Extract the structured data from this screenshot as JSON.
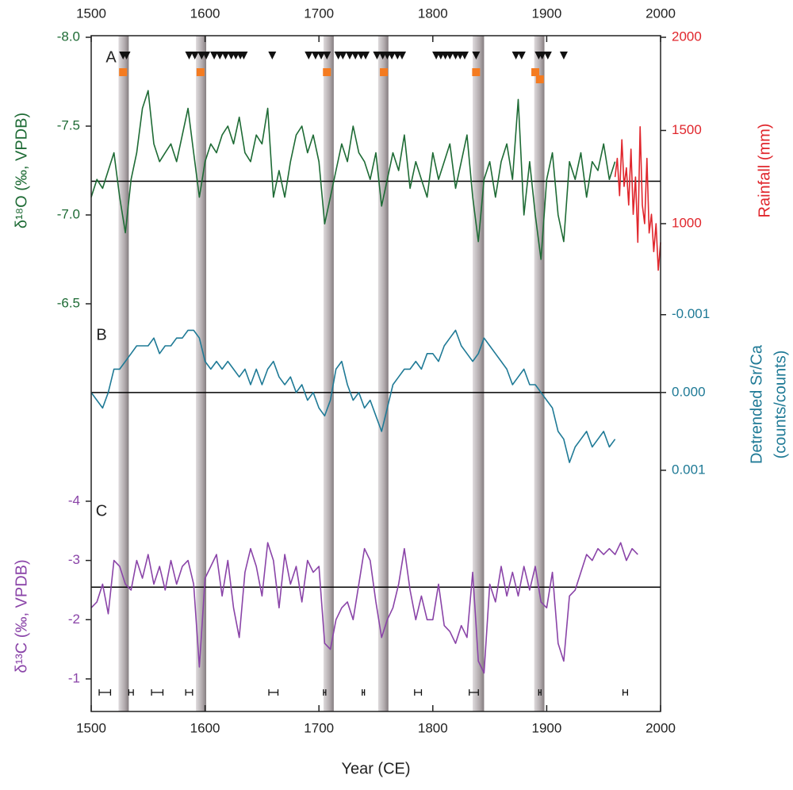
{
  "chart_data": [
    {
      "type": "line",
      "panel_label": "A",
      "xlim": [
        1500,
        2000
      ],
      "xticks": [
        1500,
        1600,
        1700,
        1800,
        1900,
        2000
      ],
      "ylabel": "δ¹⁸O (‰, VPDB)",
      "ylim": [
        -8.0,
        -6.5
      ],
      "y_inverted": true,
      "yticks": [
        {
          "value": -8,
          "label": "-8.0"
        },
        -7.5,
        {
          "value": -7,
          "label": "-7.0"
        },
        -6.5
      ],
      "y2label": "Rainfall (mm)",
      "y2lim": [
        570,
        2000
      ],
      "y2_inverted": false,
      "y2ticks": [
        1000,
        1500,
        2000
      ],
      "hline": {
        "value": -7.19,
        "axis": "y"
      },
      "shaded_periods": [
        [
          1524,
          1533
        ],
        [
          1592,
          1601
        ],
        [
          1704,
          1713
        ],
        [
          1752,
          1761
        ],
        [
          1835,
          1845
        ],
        [
          1889,
          1898
        ]
      ],
      "triangles": [
        1528,
        1531,
        1586,
        1591,
        1597,
        1601,
        1608,
        1613,
        1618,
        1623,
        1627,
        1631,
        1634,
        1659,
        1691,
        1697,
        1702,
        1707,
        1717,
        1721,
        1727,
        1732,
        1737,
        1741,
        1751,
        1756,
        1760,
        1764,
        1769,
        1773,
        1803,
        1807,
        1811,
        1815,
        1820,
        1824,
        1828,
        1838,
        1873,
        1878,
        1893,
        1896,
        1901,
        1915
      ],
      "squares": [
        1528,
        1596,
        1707,
        1757,
        1838,
        1890,
        1894
      ],
      "series": [
        {
          "color": "#1e6b35",
          "axis": "y",
          "x": [
            1500,
            1505,
            1510,
            1515,
            1520,
            1525,
            1530,
            1535,
            1540,
            1545,
            1550,
            1555,
            1560,
            1565,
            1570,
            1575,
            1580,
            1585,
            1590,
            1595,
            1600,
            1605,
            1610,
            1615,
            1620,
            1625,
            1630,
            1635,
            1640,
            1645,
            1650,
            1655,
            1660,
            1665,
            1670,
            1675,
            1680,
            1685,
            1690,
            1695,
            1700,
            1705,
            1710,
            1715,
            1720,
            1725,
            1730,
            1735,
            1740,
            1745,
            1750,
            1755,
            1760,
            1765,
            1770,
            1775,
            1780,
            1785,
            1790,
            1795,
            1800,
            1805,
            1810,
            1815,
            1820,
            1825,
            1830,
            1835,
            1840,
            1845,
            1850,
            1855,
            1860,
            1865,
            1870,
            1875,
            1880,
            1885,
            1890,
            1895,
            1900,
            1905,
            1910,
            1915,
            1920,
            1925,
            1930,
            1935,
            1940,
            1945,
            1950,
            1955,
            1960
          ],
          "values": [
            -7.1,
            -7.2,
            -7.15,
            -7.25,
            -7.35,
            -7.1,
            -6.9,
            -7.2,
            -7.35,
            -7.6,
            -7.7,
            -7.4,
            -7.3,
            -7.35,
            -7.4,
            -7.3,
            -7.45,
            -7.6,
            -7.35,
            -7.1,
            -7.3,
            -7.4,
            -7.35,
            -7.45,
            -7.5,
            -7.4,
            -7.55,
            -7.35,
            -7.3,
            -7.45,
            -7.4,
            -7.6,
            -7.1,
            -7.25,
            -7.1,
            -7.3,
            -7.45,
            -7.5,
            -7.35,
            -7.45,
            -7.3,
            -6.95,
            -7.1,
            -7.25,
            -7.4,
            -7.3,
            -7.5,
            -7.35,
            -7.3,
            -7.2,
            -7.35,
            -7.05,
            -7.2,
            -7.35,
            -7.25,
            -7.45,
            -7.15,
            -7.3,
            -7.2,
            -7.1,
            -7.35,
            -7.2,
            -7.3,
            -7.4,
            -7.15,
            -7.3,
            -7.45,
            -7.1,
            -6.85,
            -7.2,
            -7.3,
            -7.1,
            -7.3,
            -7.4,
            -7.2,
            -7.65,
            -7.0,
            -7.3,
            -7.0,
            -6.75,
            -7.2,
            -7.35,
            -7.0,
            -6.85,
            -7.3,
            -7.2,
            -7.35,
            -7.1,
            -7.3,
            -7.25,
            -7.4,
            -7.2,
            -7.3
          ]
        },
        {
          "color": "#e0262c",
          "axis": "y2",
          "x": [
            1960,
            1962,
            1964,
            1966,
            1968,
            1970,
            1972,
            1974,
            1976,
            1978,
            1980,
            1982,
            1984,
            1986,
            1988,
            1990,
            1992,
            1994,
            1996,
            1998,
            2000
          ],
          "values": [
            1250,
            1350,
            1150,
            1450,
            1200,
            1300,
            1100,
            1400,
            1050,
            1250,
            900,
            1520,
            1100,
            1000,
            1350,
            950,
            1050,
            850,
            1000,
            750,
            900
          ]
        }
      ]
    },
    {
      "type": "line",
      "panel_label": "B",
      "xlim": [
        1500,
        2000
      ],
      "y2label": [
        "Detrended Sr/Ca",
        "(counts/counts)"
      ],
      "y2lim": [
        -0.00114,
        0.00148
      ],
      "y2_inverted": true,
      "y2ticks": [
        -0.001,
        {
          "value": 0,
          "label": "0.000"
        },
        0.001
      ],
      "hline": {
        "value": 0,
        "axis": "y2"
      },
      "series": [
        {
          "color": "#1f7a96",
          "axis": "y2",
          "x": [
            1500,
            1505,
            1510,
            1515,
            1520,
            1525,
            1530,
            1535,
            1540,
            1545,
            1550,
            1555,
            1560,
            1565,
            1570,
            1575,
            1580,
            1585,
            1590,
            1595,
            1600,
            1605,
            1610,
            1615,
            1620,
            1625,
            1630,
            1635,
            1640,
            1645,
            1650,
            1655,
            1660,
            1665,
            1670,
            1675,
            1680,
            1685,
            1690,
            1695,
            1700,
            1705,
            1710,
            1715,
            1720,
            1725,
            1730,
            1735,
            1740,
            1745,
            1750,
            1755,
            1760,
            1765,
            1770,
            1775,
            1780,
            1785,
            1790,
            1795,
            1800,
            1805,
            1810,
            1815,
            1820,
            1825,
            1830,
            1835,
            1840,
            1845,
            1850,
            1855,
            1860,
            1865,
            1870,
            1875,
            1880,
            1885,
            1890,
            1895,
            1900,
            1905,
            1910,
            1915,
            1920,
            1925,
            1930,
            1935,
            1940,
            1945,
            1950,
            1955,
            1960
          ],
          "values": [
            0,
            0.0001,
            0.0002,
            0,
            -0.0003,
            -0.0003,
            -0.0004,
            -0.0005,
            -0.0006,
            -0.0006,
            -0.0006,
            -0.0007,
            -0.0005,
            -0.0006,
            -0.0006,
            -0.0007,
            -0.0007,
            -0.0008,
            -0.0008,
            -0.0007,
            -0.0004,
            -0.0003,
            -0.0004,
            -0.0003,
            -0.0004,
            -0.0003,
            -0.0002,
            -0.0003,
            -0.0001,
            -0.0003,
            -0.0001,
            -0.0003,
            -0.0004,
            -0.0002,
            -0.0001,
            -0.0002,
            0,
            -0.0001,
            0.0001,
            0,
            0.0002,
            0.0003,
            0.0001,
            -0.0003,
            -0.0004,
            -0.0001,
            0.0001,
            0,
            0.0002,
            0.0001,
            0.0003,
            0.0005,
            0.0002,
            -0.0001,
            -0.0002,
            -0.0003,
            -0.0003,
            -0.0004,
            -0.0003,
            -0.0005,
            -0.0005,
            -0.0004,
            -0.0006,
            -0.0007,
            -0.0008,
            -0.0006,
            -0.0005,
            -0.0004,
            -0.0005,
            -0.0007,
            -0.0006,
            -0.0005,
            -0.0004,
            -0.0003,
            -0.0001,
            -0.0002,
            -0.0003,
            -0.0001,
            -0.0001,
            0,
            0.0001,
            0.0002,
            0.0005,
            0.0006,
            0.0009,
            0.0007,
            0.0006,
            0.0005,
            0.0007,
            0.0006,
            0.0005,
            0.0007,
            0.0006
          ]
        }
      ]
    },
    {
      "type": "line",
      "panel_label": "C",
      "xlim": [
        1500,
        2000
      ],
      "xticks": [
        1500,
        1600,
        1700,
        1800,
        1900,
        2000
      ],
      "xlabel": "Year (CE)",
      "ylabel": "δ¹³C (‰, VPDB)",
      "ylim": [
        -4.2,
        -0.45
      ],
      "y_inverted": true,
      "yticks": [
        -4,
        -3,
        -2,
        -1
      ],
      "hline": {
        "value": -2.55,
        "axis": "y"
      },
      "dating": [
        [
          1512,
          5
        ],
        [
          1535,
          2
        ],
        [
          1558,
          5
        ],
        [
          1586,
          3
        ],
        [
          1660,
          4
        ],
        [
          1705,
          1
        ],
        [
          1739,
          1
        ],
        [
          1787,
          3
        ],
        [
          1836,
          4
        ],
        [
          1894,
          1
        ],
        [
          1969,
          2
        ]
      ],
      "series": [
        {
          "color": "#8a44a8",
          "axis": "y",
          "x": [
            1500,
            1505,
            1510,
            1515,
            1520,
            1525,
            1530,
            1535,
            1540,
            1545,
            1550,
            1555,
            1560,
            1565,
            1570,
            1575,
            1580,
            1585,
            1590,
            1595,
            1600,
            1605,
            1610,
            1615,
            1620,
            1625,
            1630,
            1635,
            1640,
            1645,
            1650,
            1655,
            1660,
            1665,
            1670,
            1675,
            1680,
            1685,
            1690,
            1695,
            1700,
            1705,
            1710,
            1715,
            1720,
            1725,
            1730,
            1735,
            1740,
            1745,
            1750,
            1755,
            1760,
            1765,
            1770,
            1775,
            1780,
            1785,
            1790,
            1795,
            1800,
            1805,
            1810,
            1815,
            1820,
            1825,
            1830,
            1835,
            1840,
            1845,
            1850,
            1855,
            1860,
            1865,
            1870,
            1875,
            1880,
            1885,
            1890,
            1895,
            1900,
            1905,
            1910,
            1915,
            1920,
            1925,
            1930,
            1935,
            1940,
            1945,
            1950,
            1955,
            1960,
            1965,
            1970,
            1975,
            1980
          ],
          "values": [
            -2.2,
            -2.3,
            -2.6,
            -2.1,
            -3.0,
            -2.9,
            -2.6,
            -2.5,
            -3.0,
            -2.7,
            -3.1,
            -2.6,
            -2.9,
            -2.5,
            -3.0,
            -2.6,
            -2.9,
            -3.0,
            -2.6,
            -1.2,
            -2.7,
            -2.9,
            -3.1,
            -2.4,
            -3.0,
            -2.2,
            -1.7,
            -2.8,
            -3.2,
            -2.9,
            -2.4,
            -3.3,
            -3.0,
            -2.2,
            -3.1,
            -2.6,
            -2.9,
            -2.3,
            -3.0,
            -2.8,
            -2.9,
            -1.6,
            -1.5,
            -2.0,
            -2.2,
            -2.3,
            -2.0,
            -2.6,
            -3.2,
            -3.0,
            -2.3,
            -1.7,
            -2.0,
            -2.2,
            -2.6,
            -3.2,
            -2.5,
            -2.0,
            -2.4,
            -2.0,
            -2.0,
            -2.6,
            -1.9,
            -1.8,
            -1.6,
            -1.9,
            -1.7,
            -2.8,
            -1.3,
            -1.1,
            -2.6,
            -2.3,
            -2.9,
            -2.4,
            -2.8,
            -2.4,
            -2.9,
            -2.5,
            -2.9,
            -2.3,
            -2.2,
            -2.8,
            -1.6,
            -1.3,
            -2.4,
            -2.5,
            -2.8,
            -3.1,
            -3.0,
            -3.2,
            -3.1,
            -3.2,
            -3.1,
            -3.3,
            -3.0,
            -3.2,
            -3.1
          ]
        }
      ]
    }
  ]
}
